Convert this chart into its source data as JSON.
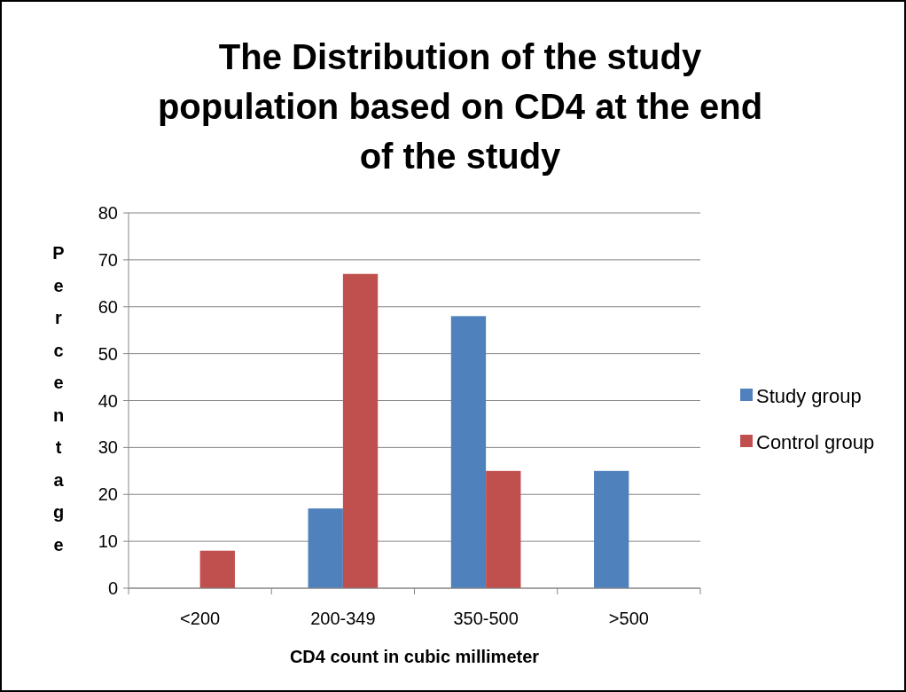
{
  "chart_data": {
    "type": "bar",
    "title": "The Distribution of the study population based on CD4 at the end of the study",
    "xlabel": "CD4 count in cubic millimeter",
    "ylabel": "Percentage",
    "categories": [
      "<200",
      "200-349",
      "350-500",
      ">500"
    ],
    "series": [
      {
        "name": "Study group",
        "color": "#4f81bd",
        "values": [
          0,
          17,
          58,
          25
        ]
      },
      {
        "name": "Control group",
        "color": "#c0504d",
        "values": [
          8,
          67,
          25,
          0
        ]
      }
    ],
    "ylim": [
      0,
      80
    ],
    "yticks": [
      0,
      10,
      20,
      30,
      40,
      50,
      60,
      70,
      80
    ],
    "grid": "y",
    "legend": "right"
  }
}
